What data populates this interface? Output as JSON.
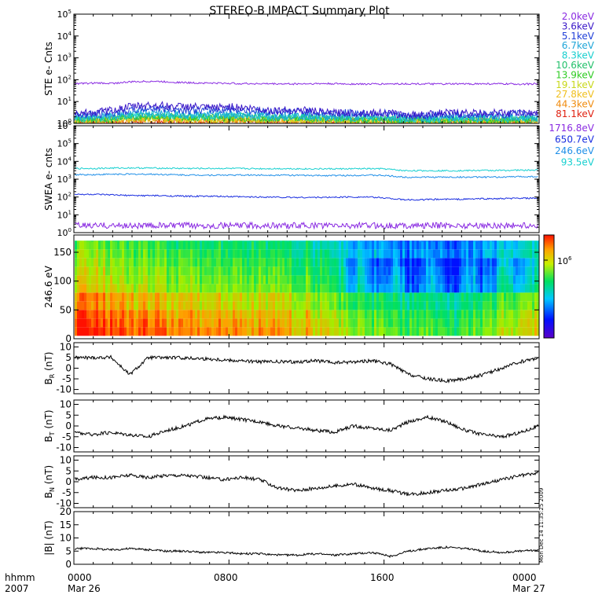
{
  "title": "STEREO-B IMPACT Summary Plot",
  "time_footer": {
    "label_line1": "hhmm",
    "label_line2": "2007",
    "ticks": [
      "0000",
      "0800",
      "1600",
      "0000"
    ],
    "dates": [
      "Mar 26",
      "Mar 27"
    ]
  },
  "side_stamp": "Mon Dec 14 11:35:25 2009",
  "colorbar": {
    "tick_label": "10",
    "tick_exp": "6"
  },
  "chart_data": [
    {
      "id": "ste",
      "type": "line",
      "ylabel": "STE e- Cnts",
      "yscale": "log",
      "ylim": [
        1,
        100000
      ],
      "yticks": [
        {
          "base": "10",
          "exp": "0"
        },
        {
          "base": "10",
          "exp": "1"
        },
        {
          "base": "10",
          "exp": "2"
        },
        {
          "base": "10",
          "exp": "3"
        },
        {
          "base": "10",
          "exp": "4"
        },
        {
          "base": "10",
          "exp": "5"
        }
      ],
      "x_range_hours": [
        0,
        24
      ],
      "series": [
        {
          "name": "2.0keV",
          "color": "#8a2be2",
          "values": [
            65,
            70,
            68,
            80,
            85,
            78,
            72,
            70,
            68,
            66,
            65,
            64,
            65,
            66,
            64,
            63,
            64,
            65,
            64,
            63,
            64,
            65,
            64,
            63,
            64
          ]
        },
        {
          "name": "3.6keV",
          "color": "#3a18c8",
          "values": [
            3,
            3,
            4,
            6,
            7,
            6,
            6,
            5,
            6,
            5,
            4,
            4,
            4,
            3,
            3,
            3,
            3,
            2.5,
            2.5,
            3,
            3,
            3,
            3,
            3,
            3
          ]
        },
        {
          "name": "5.1keV",
          "color": "#1f3fd8",
          "values": [
            2.5,
            2.5,
            3,
            4,
            5,
            4.5,
            4,
            4,
            4.5,
            4,
            3.5,
            3.5,
            3.5,
            3,
            3,
            3,
            3,
            2.2,
            2.2,
            2.5,
            2.5,
            2.5,
            2.5,
            2.8,
            2.8
          ]
        },
        {
          "name": "6.7keV",
          "color": "#1fa6d8",
          "values": [
            2,
            2,
            2.2,
            2.8,
            3,
            2.8,
            2.6,
            2.5,
            2.6,
            2.5,
            2.3,
            2.3,
            2.3,
            2.1,
            2,
            2,
            2,
            1.8,
            1.8,
            1.9,
            1.9,
            1.9,
            1.9,
            2,
            2
          ]
        },
        {
          "name": "8.3keV",
          "color": "#18cfcf",
          "values": [
            1.8,
            1.8,
            2,
            2.4,
            2.6,
            2.4,
            2.2,
            2.2,
            2.3,
            2.2,
            2,
            2,
            2,
            1.9,
            1.8,
            1.8,
            1.8,
            1.6,
            1.6,
            1.7,
            1.7,
            1.7,
            1.7,
            1.8,
            1.8
          ]
        },
        {
          "name": "10.6keV",
          "color": "#22c06a",
          "values": [
            1.6,
            1.6,
            1.8,
            2.1,
            2.2,
            2.1,
            2,
            2,
            2,
            2,
            1.8,
            1.8,
            1.8,
            1.7,
            1.6,
            1.6,
            1.6,
            1.5,
            1.5,
            1.5,
            1.5,
            1.5,
            1.5,
            1.6,
            1.6
          ]
        },
        {
          "name": "13.9keV",
          "color": "#2ecc22",
          "values": [
            1.5,
            1.5,
            1.6,
            1.9,
            2,
            1.9,
            1.8,
            1.8,
            1.8,
            1.8,
            1.7,
            1.7,
            1.7,
            1.6,
            1.5,
            1.5,
            1.5,
            1.4,
            1.4,
            1.4,
            1.4,
            1.4,
            1.4,
            1.5,
            1.5
          ]
        },
        {
          "name": "19.1keV",
          "color": "#c8d81a",
          "values": [
            1.4,
            1.4,
            1.5,
            1.7,
            1.8,
            1.7,
            1.6,
            1.6,
            1.6,
            1.6,
            1.5,
            1.5,
            1.5,
            1.4,
            1.4,
            1.4,
            1.4,
            1.3,
            1.3,
            1.3,
            1.3,
            1.3,
            1.3,
            1.4,
            1.4
          ]
        },
        {
          "name": "27.8keV",
          "color": "#f0c020",
          "values": [
            1.3,
            1.3,
            1.4,
            1.6,
            1.6,
            1.6,
            1.5,
            1.5,
            1.5,
            1.5,
            1.4,
            1.4,
            1.4,
            1.3,
            1.3,
            1.3,
            1.3,
            1.25,
            1.25,
            1.25,
            1.25,
            1.25,
            1.25,
            1.3,
            1.3
          ]
        },
        {
          "name": "44.3keV",
          "color": "#f08c10",
          "values": [
            1.2,
            1.2,
            1.3,
            1.4,
            1.5,
            1.4,
            1.4,
            1.4,
            1.4,
            1.4,
            1.3,
            1.3,
            1.3,
            1.2,
            1.2,
            1.2,
            1.2,
            1.15,
            1.15,
            1.15,
            1.15,
            1.15,
            1.15,
            1.2,
            1.2
          ]
        },
        {
          "name": "81.1keV",
          "color": "#e02010",
          "values": [
            1.1,
            1.1,
            1.1,
            1.2,
            1.2,
            1.2,
            1.2,
            1.2,
            1.2,
            1.2,
            1.1,
            1.1,
            1.1,
            1.1,
            1.1,
            1.1,
            1.1,
            1.05,
            1.05,
            1.05,
            1.05,
            1.05,
            1.05,
            1.1,
            1.1
          ]
        }
      ]
    },
    {
      "id": "swea",
      "type": "line",
      "ylabel": "SWEA e- cnts",
      "yscale": "log",
      "ylim": [
        1,
        1000000
      ],
      "yticks": [
        {
          "base": "10",
          "exp": "0"
        },
        {
          "base": "10",
          "exp": "1"
        },
        {
          "base": "10",
          "exp": "2"
        },
        {
          "base": "10",
          "exp": "3"
        },
        {
          "base": "10",
          "exp": "4"
        },
        {
          "base": "10",
          "exp": "5"
        },
        {
          "base": "10",
          "exp": "6"
        }
      ],
      "x_range_hours": [
        0,
        24
      ],
      "series": [
        {
          "name": "1716.8eV",
          "color": "#8a2be2",
          "values": [
            2.5,
            2.5,
            2.5,
            2.5,
            2.5,
            2.5,
            2.5,
            2.5,
            2.5,
            2.5,
            2.5,
            2.5,
            2.5,
            2.5,
            2.5,
            2.5,
            2.5,
            2.5,
            2.5,
            2.5,
            2.5,
            2.5,
            2.5,
            2.5,
            2.5
          ]
        },
        {
          "name": "650.7eV",
          "color": "#1a2ee0",
          "values": [
            140,
            140,
            130,
            120,
            120,
            115,
            110,
            110,
            105,
            100,
            100,
            95,
            95,
            95,
            100,
            100,
            90,
            70,
            70,
            75,
            75,
            80,
            80,
            85,
            85
          ]
        },
        {
          "name": "246.6eV",
          "color": "#1f8fe8",
          "values": [
            1800,
            1800,
            1900,
            1900,
            1900,
            1800,
            1700,
            1700,
            1700,
            1700,
            1700,
            1700,
            1600,
            1600,
            1600,
            1700,
            1600,
            1300,
            1300,
            1300,
            1300,
            1300,
            1300,
            1400,
            1400
          ]
        },
        {
          "name": "93.5eV",
          "color": "#18d0d0",
          "values": [
            4000,
            4000,
            4200,
            4300,
            4200,
            4100,
            4000,
            4000,
            4000,
            3900,
            3900,
            3900,
            3800,
            3800,
            3800,
            3900,
            3800,
            3000,
            3000,
            3000,
            3000,
            3100,
            3100,
            3200,
            3200
          ]
        }
      ]
    },
    {
      "id": "pad",
      "type": "heatmap",
      "ylabel": "246.6 eV",
      "ylim": [
        0,
        180
      ],
      "yticks": [
        "0",
        "50",
        "100",
        "150"
      ],
      "x_range_hours": [
        0,
        24
      ],
      "note_values": "level 0 (blue) to 1 (red) on the colour bar",
      "level_profile_by_hour": [
        0.75,
        0.78,
        0.72,
        0.68,
        0.7,
        0.66,
        0.64,
        0.62,
        0.64,
        0.6,
        0.62,
        0.6,
        0.58,
        0.55,
        0.45,
        0.4,
        0.38,
        0.3,
        0.35,
        0.32,
        0.28,
        0.38,
        0.45,
        0.5,
        0.52
      ]
    },
    {
      "id": "br",
      "type": "line",
      "ylabel_main": "B",
      "ylabel_sub": "R",
      "ylabel_unit": "(nT)",
      "ylim": [
        -12,
        12
      ],
      "yticks": [
        "-10",
        "-5",
        "0",
        "5",
        "10"
      ],
      "x_range_hours": [
        0,
        24
      ],
      "values": [
        5,
        5,
        5.2,
        -3,
        5,
        5,
        4.8,
        4.5,
        4,
        3.5,
        3,
        3,
        3,
        3.5,
        2.5,
        3,
        3.5,
        2,
        -3,
        -5,
        -6,
        -5,
        -3,
        0,
        3,
        5
      ]
    },
    {
      "id": "bt",
      "type": "line",
      "ylabel_main": "B",
      "ylabel_sub": "T",
      "ylabel_unit": "(nT)",
      "ylim": [
        -12,
        12
      ],
      "yticks": [
        "-10",
        "-5",
        "0",
        "5",
        "10"
      ],
      "x_range_hours": [
        0,
        24
      ],
      "values": [
        -3,
        -4,
        -3,
        -4,
        -5,
        -2,
        0,
        3,
        4,
        3,
        2,
        0,
        -1,
        -2,
        -3,
        0,
        -1,
        -2,
        2,
        4,
        2,
        -2,
        -4,
        -5,
        -3,
        0
      ]
    },
    {
      "id": "bn",
      "type": "line",
      "ylabel_main": "B",
      "ylabel_sub": "N",
      "ylabel_unit": "(nT)",
      "ylim": [
        -12,
        12
      ],
      "yticks": [
        "-10",
        "-5",
        "0",
        "5",
        "10"
      ],
      "x_range_hours": [
        0,
        24
      ],
      "values": [
        1,
        2,
        2,
        3,
        2,
        3,
        3,
        2,
        1,
        2,
        1,
        -3,
        -4,
        -3,
        -2,
        -1,
        -3,
        -4,
        -6,
        -5,
        -4,
        -3,
        -1,
        1,
        3,
        4
      ]
    },
    {
      "id": "bmag",
      "type": "line",
      "ylabel": "|B| (nT)",
      "ylim": [
        0,
        20
      ],
      "yticks": [
        "0",
        "5",
        "10",
        "15",
        "20"
      ],
      "x_range_hours": [
        0,
        24
      ],
      "values": [
        6,
        6,
        5.5,
        6,
        5.5,
        5,
        5,
        4.5,
        4.5,
        4,
        4,
        3.5,
        3.5,
        4,
        3.5,
        4,
        4.5,
        3,
        5,
        6,
        6.5,
        6,
        5,
        4.5,
        5,
        5.5
      ]
    }
  ]
}
